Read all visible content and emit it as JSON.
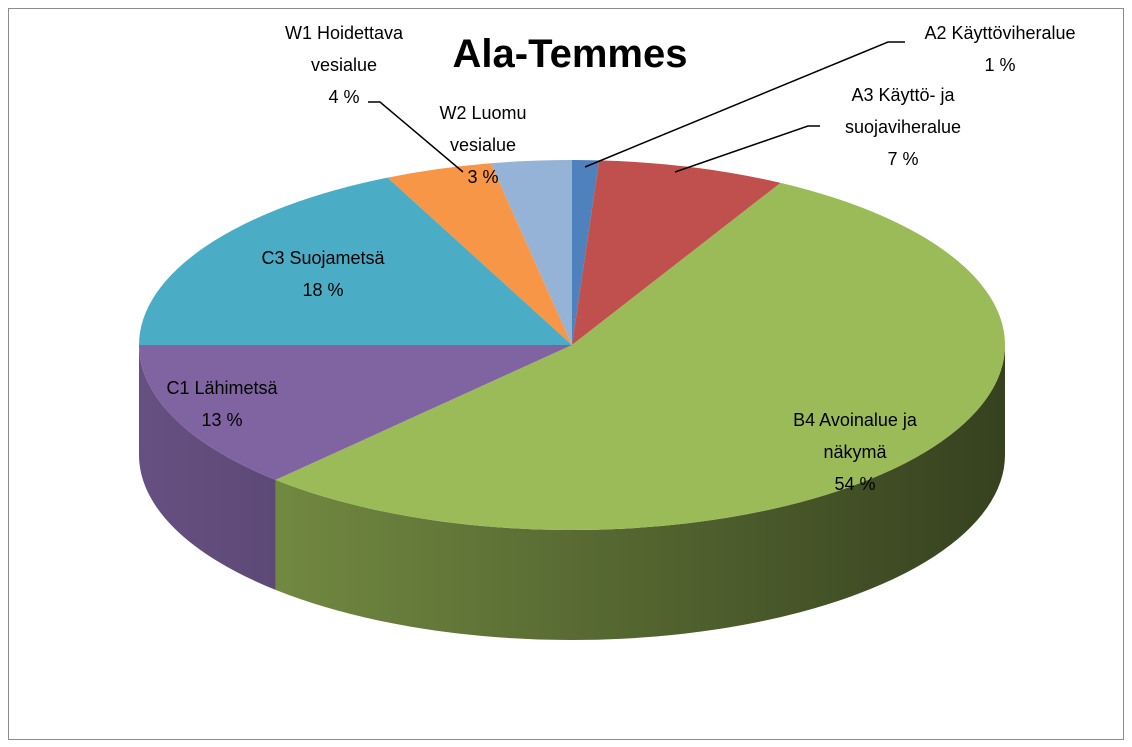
{
  "chart_data": {
    "type": "pie",
    "title": "Ala-Temmes",
    "categories": [
      "A2 Käyttöviheralue",
      "A3 Käyttö- ja suojaviheralue",
      "B4 Avoinalue ja näkymä",
      "C1 Lähimetsä",
      "C3 Suojametsä",
      "W1 Hoidettava vesialue",
      "W2 Luomu vesialue"
    ],
    "values": [
      1,
      7,
      54,
      13,
      18,
      4,
      3
    ],
    "value_labels": [
      "1 %",
      "7 %",
      "54 %",
      "13 %",
      "18 %",
      "4 %",
      "3 %"
    ],
    "colors": [
      "#4f81bd",
      "#c0504d",
      "#9bbb59",
      "#8064a2",
      "#4bacc6",
      "#f79646",
      "#95b3d7"
    ]
  }
}
